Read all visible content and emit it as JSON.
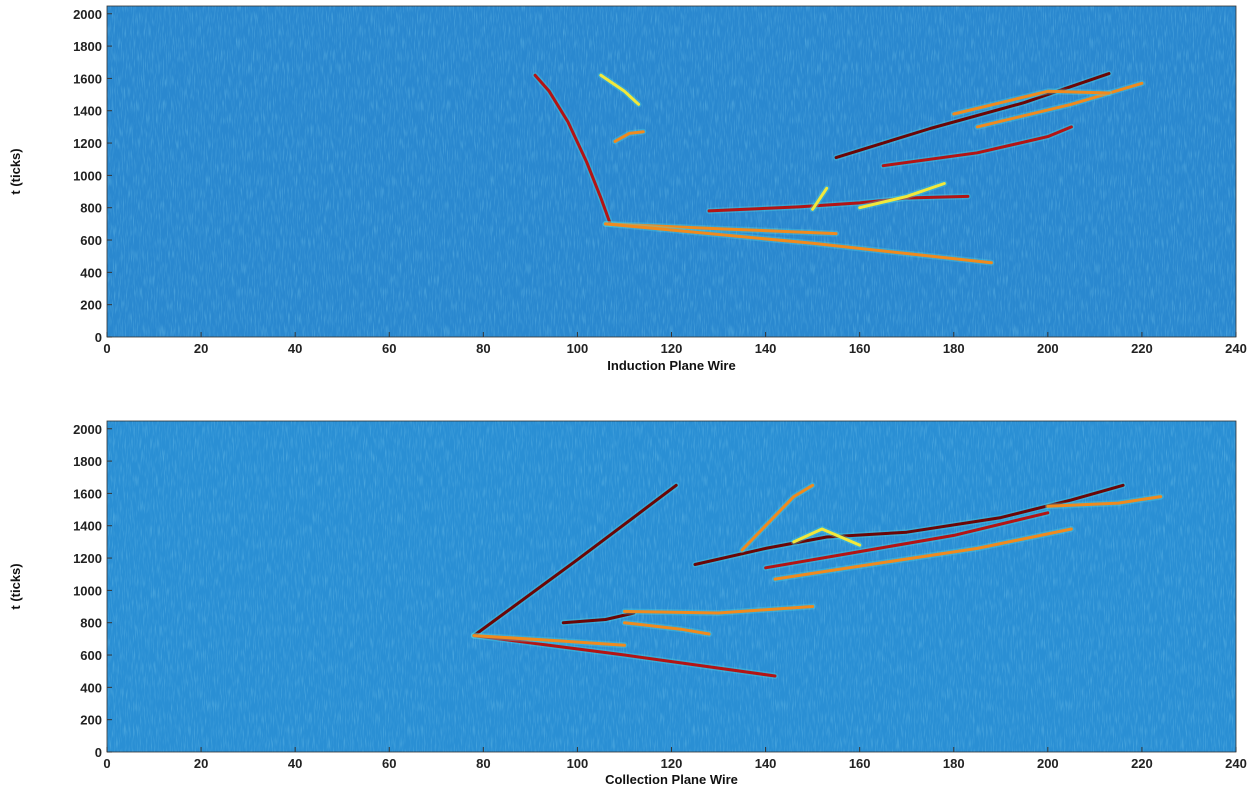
{
  "chart_data": [
    {
      "type": "heatmap",
      "xlabel": "Induction Plane Wire",
      "ylabel": "t (ticks)",
      "xlim": [
        0,
        240
      ],
      "ylim": [
        0,
        2048
      ],
      "xticks": [
        0,
        20,
        40,
        60,
        80,
        100,
        120,
        140,
        160,
        180,
        200,
        220,
        240
      ],
      "yticks": [
        0,
        200,
        400,
        600,
        800,
        1000,
        1200,
        1400,
        1600,
        1800,
        2000
      ],
      "background_color": "#2a88cf",
      "colormap": [
        "#0a3f9e",
        "#2a88cf",
        "#4fd6e0",
        "#f2e83a",
        "#f08a1e",
        "#b31414",
        "#6a0606"
      ],
      "tracks": [
        {
          "points": [
            [
              91,
              1620
            ],
            [
              94,
              1520
            ],
            [
              98,
              1330
            ],
            [
              102,
              1080
            ],
            [
              105,
              860
            ],
            [
              107,
              700
            ]
          ],
          "intensity": 0.8
        },
        {
          "points": [
            [
              106,
              700
            ],
            [
              130,
              670
            ],
            [
              155,
              640
            ]
          ],
          "intensity": 0.65
        },
        {
          "points": [
            [
              106,
              700
            ],
            [
              150,
              580
            ],
            [
              188,
              460
            ]
          ],
          "intensity": 0.6
        },
        {
          "points": [
            [
              128,
              780
            ],
            [
              147,
              805
            ],
            [
              160,
              830
            ],
            [
              170,
              860
            ],
            [
              183,
              870
            ]
          ],
          "intensity": 0.85
        },
        {
          "points": [
            [
              155,
              1110
            ],
            [
              175,
              1290
            ],
            [
              195,
              1450
            ],
            [
              213,
              1630
            ]
          ],
          "intensity": 0.95
        },
        {
          "points": [
            [
              165,
              1060
            ],
            [
              185,
              1140
            ],
            [
              200,
              1240
            ],
            [
              205,
              1300
            ]
          ],
          "intensity": 0.75
        },
        {
          "points": [
            [
              185,
              1300
            ],
            [
              205,
              1440
            ],
            [
              220,
              1570
            ]
          ],
          "intensity": 0.6
        },
        {
          "points": [
            [
              105,
              1620
            ],
            [
              110,
              1520
            ],
            [
              113,
              1440
            ]
          ],
          "intensity": 0.55
        },
        {
          "points": [
            [
              108,
              1210
            ],
            [
              111,
              1260
            ],
            [
              114,
              1270
            ]
          ],
          "intensity": 0.7
        },
        {
          "points": [
            [
              180,
              1380
            ],
            [
              200,
              1520
            ],
            [
              213,
              1510
            ]
          ],
          "intensity": 0.7
        },
        {
          "points": [
            [
              150,
              790
            ],
            [
              153,
              920
            ]
          ],
          "intensity": 0.55
        },
        {
          "points": [
            [
              160,
              800
            ],
            [
              170,
              870
            ],
            [
              178,
              950
            ]
          ],
          "intensity": 0.55
        }
      ]
    },
    {
      "type": "heatmap",
      "xlabel": "Collection Plane Wire",
      "ylabel": "t (ticks)",
      "xlim": [
        0,
        240
      ],
      "ylim": [
        0,
        2048
      ],
      "xticks": [
        0,
        20,
        40,
        60,
        80,
        100,
        120,
        140,
        160,
        180,
        200,
        220,
        240
      ],
      "yticks": [
        0,
        200,
        400,
        600,
        800,
        1000,
        1200,
        1400,
        1600,
        1800,
        2000
      ],
      "background_color": "#2a8fd4",
      "colormap": [
        "#0a3f9e",
        "#2a88cf",
        "#4fd6e0",
        "#f2e83a",
        "#f08a1e",
        "#b31414",
        "#6a0606"
      ],
      "tracks": [
        {
          "points": [
            [
              78,
              720
            ],
            [
              100,
              1190
            ],
            [
              121,
              1650
            ]
          ],
          "intensity": 0.92
        },
        {
          "points": [
            [
              78,
              720
            ],
            [
              110,
              600
            ],
            [
              142,
              470
            ]
          ],
          "intensity": 0.85
        },
        {
          "points": [
            [
              78,
              720
            ],
            [
              95,
              690
            ],
            [
              110,
              660
            ]
          ],
          "intensity": 0.6
        },
        {
          "points": [
            [
              97,
              800
            ],
            [
              106,
              820
            ],
            [
              112,
              860
            ]
          ],
          "intensity": 0.97
        },
        {
          "points": [
            [
              110,
              800
            ],
            [
              122,
              760
            ],
            [
              128,
              730
            ]
          ],
          "intensity": 0.6
        },
        {
          "points": [
            [
              110,
              870
            ],
            [
              130,
              860
            ],
            [
              150,
              900
            ]
          ],
          "intensity": 0.6
        },
        {
          "points": [
            [
              125,
              1160
            ],
            [
              140,
              1260
            ],
            [
              153,
              1330
            ],
            [
              170,
              1360
            ],
            [
              190,
              1450
            ],
            [
              205,
              1560
            ],
            [
              216,
              1650
            ]
          ],
          "intensity": 0.95
        },
        {
          "points": [
            [
              140,
              1140
            ],
            [
              160,
              1240
            ],
            [
              180,
              1340
            ],
            [
              200,
              1480
            ]
          ],
          "intensity": 0.85
        },
        {
          "points": [
            [
              142,
              1070
            ],
            [
              160,
              1150
            ],
            [
              185,
              1260
            ],
            [
              205,
              1380
            ]
          ],
          "intensity": 0.7
        },
        {
          "points": [
            [
              200,
              1520
            ],
            [
              215,
              1540
            ],
            [
              224,
              1580
            ]
          ],
          "intensity": 0.6
        },
        {
          "points": [
            [
              135,
              1250
            ],
            [
              140,
              1400
            ],
            [
              146,
              1580
            ],
            [
              150,
              1650
            ]
          ],
          "intensity": 0.6
        },
        {
          "points": [
            [
              146,
              1300
            ],
            [
              152,
              1380
            ],
            [
              160,
              1280
            ]
          ],
          "intensity": 0.55
        }
      ]
    }
  ]
}
